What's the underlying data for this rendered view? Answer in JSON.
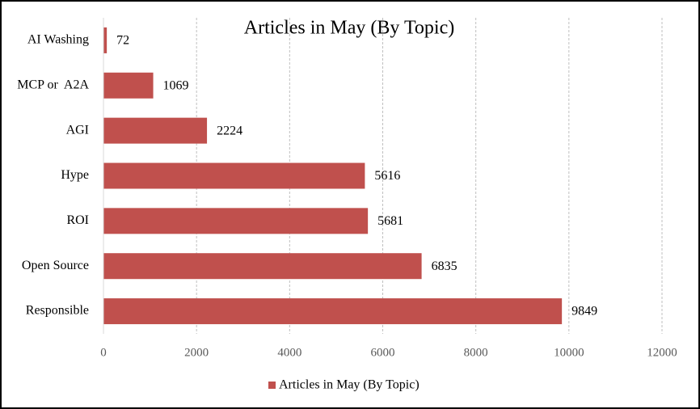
{
  "chart_data": {
    "type": "bar",
    "orientation": "horizontal",
    "title": "Articles in May (By Topic)",
    "categories": [
      "AI Washing",
      "MCP or  A2A",
      "AGI",
      "Hype",
      "ROI",
      "Open Source",
      "Responsible"
    ],
    "series": [
      {
        "name": "Articles in May (By Topic)",
        "color": "#c0504d",
        "values": [
          72,
          1069,
          2224,
          5616,
          5681,
          6835,
          9849
        ]
      }
    ],
    "xlim": [
      0,
      12000
    ],
    "xticks": [
      0,
      2000,
      4000,
      6000,
      8000,
      10000,
      12000
    ],
    "grid": true,
    "legend": "bottom"
  }
}
